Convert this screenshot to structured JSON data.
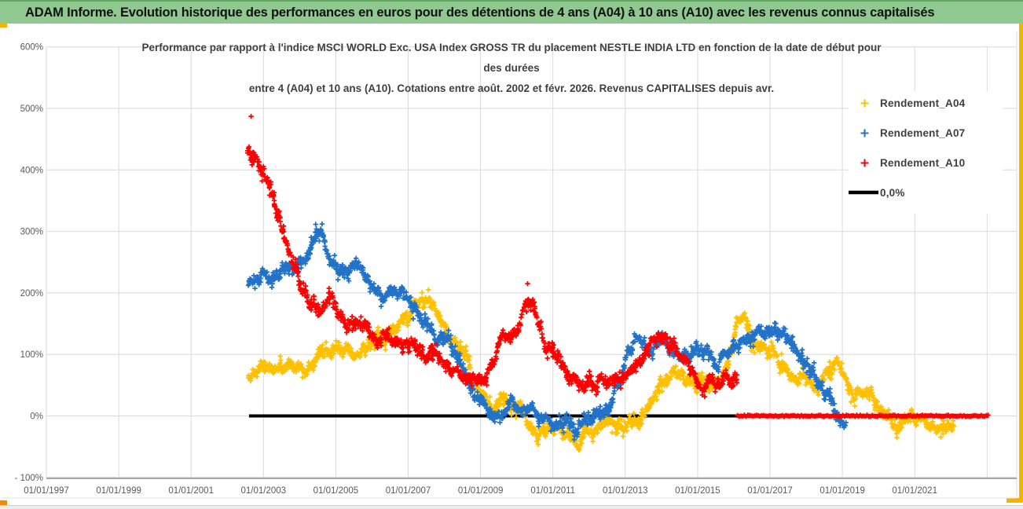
{
  "header": {
    "title": "ADAM Informe. Evolution historique des performances en euros pour des détentions de 4 ans (A04) à 10 ans (A10) avec les revenus connus capitalisés",
    "bg_color": "#8FC98F"
  },
  "chart_data": {
    "type": "scatter",
    "title_lines": [
      "Performance par rapport à l'indice MSCI WORLD Exc. USA Index GROSS TR  du placement NESTLE INDIA LTD en fonction de la date de début pour",
      "des durées",
      "entre 4 (A04) et 10 ans (A10). Cotations entre août. 2002 et févr. 2026. Revenus CAPITALISES depuis avr."
    ],
    "grid": true,
    "x_axis": {
      "tick_labels": [
        "01/01/1997",
        "01/01/1999",
        "01/01/2001",
        "01/01/2003",
        "01/01/2005",
        "01/01/2007",
        "01/01/2009",
        "01/01/2011",
        "01/01/2013",
        "01/01/2015",
        "01/01/2017",
        "01/01/2019",
        "01/01/2021"
      ],
      "tick_years": [
        1997,
        1999,
        2001,
        2003,
        2005,
        2007,
        2009,
        2011,
        2013,
        2015,
        2017,
        2019,
        2021
      ],
      "extra_gridline_years": [
        2023
      ],
      "range_years": [
        1997,
        2023.8
      ]
    },
    "y_axis": {
      "tick_labels": [
        "600%",
        "500%",
        "400%",
        "300%",
        "200%",
        "100%",
        "0%",
        "- 100%"
      ],
      "tick_values": [
        600,
        500,
        400,
        300,
        200,
        100,
        0,
        -100
      ],
      "min": -100,
      "max": 600,
      "unit": "%"
    },
    "legend": [
      {
        "label": "Rendement_A04",
        "color": "#FFC000",
        "marker": "plus"
      },
      {
        "label": "Rendement_A07",
        "color": "#2273C8",
        "marker": "plus"
      },
      {
        "label": "Rendement_A10",
        "color": "#FF0000",
        "marker": "plus"
      },
      {
        "label": "0,0%",
        "color": "#000000",
        "marker": "line"
      }
    ],
    "series": [
      {
        "name": "Rendement_A04",
        "color": "#FFC000",
        "t_start": 2002.58,
        "t_step": 0.25,
        "values": [
          70,
          72,
          75,
          70,
          73,
          76,
          73,
          80,
          100,
          108,
          103,
          112,
          100,
          110,
          120,
          128,
          142,
          155,
          168,
          185,
          198,
          160,
          125,
          128,
          100,
          55,
          35,
          15,
          28,
          20,
          5,
          -15,
          -25,
          -18,
          -15,
          -30,
          -40,
          -32,
          -30,
          -22,
          -20,
          -12,
          -10,
          -5,
          10,
          40,
          62,
          72,
          60,
          50,
          62,
          45,
          52,
          90,
          145,
          158,
          120,
          112,
          105,
          80,
          65,
          62,
          55,
          48,
          70,
          88,
          60,
          32,
          36,
          25,
          0,
          -10,
          -15,
          -5,
          0,
          -12,
          -25,
          -20,
          -18
        ],
        "extra_points": [
          [
            2007.56,
            205
          ]
        ]
      },
      {
        "name": "Rendement_A07",
        "color": "#2273C8",
        "t_start": 2002.58,
        "t_step": 0.25,
        "values": [
          212,
          230,
          232,
          222,
          243,
          252,
          262,
          283,
          303,
          262,
          228,
          232,
          243,
          225,
          210,
          200,
          192,
          196,
          180,
          160,
          143,
          128,
          118,
          95,
          70,
          30,
          15,
          -5,
          6,
          15,
          10,
          22,
          2,
          -5,
          -15,
          -6,
          -22,
          -14,
          -5,
          5,
          15,
          60,
          100,
          120,
          105,
          113,
          125,
          110,
          95,
          100,
          115,
          98,
          85,
          100,
          113,
          124,
          130,
          140,
          150,
          130,
          118,
          100,
          70,
          55,
          30,
          5,
          -5
        ],
        "extra_points": [
          [
            2004.62,
            312
          ]
        ]
      },
      {
        "name": "Rendement_A10",
        "color": "#FF0000",
        "t_start": 2002.58,
        "t_step": 0.25,
        "values": [
          435,
          420,
          390,
          340,
          290,
          245,
          210,
          175,
          170,
          195,
          170,
          142,
          158,
          140,
          125,
          135,
          125,
          112,
          118,
          100,
          95,
          105,
          88,
          72,
          60,
          50,
          62,
          82,
          112,
          130,
          152,
          200,
          150,
          118,
          92,
          68,
          55,
          52,
          56,
          60,
          55,
          62,
          72,
          85,
          110,
          125,
          130,
          118,
          88,
          64,
          50,
          60,
          55,
          60,
          55
        ],
        "extra_points": [
          [
            2002.66,
            487
          ],
          [
            2010.3,
            215
          ]
        ]
      }
    ],
    "zero_line": {
      "label": "0,0%",
      "value": 0,
      "black_color": "#000000",
      "black_span_years": [
        2002.6,
        2016.1
      ],
      "red_color": "#FF0000",
      "red_span_years": [
        2016.1,
        2023.05
      ]
    }
  }
}
